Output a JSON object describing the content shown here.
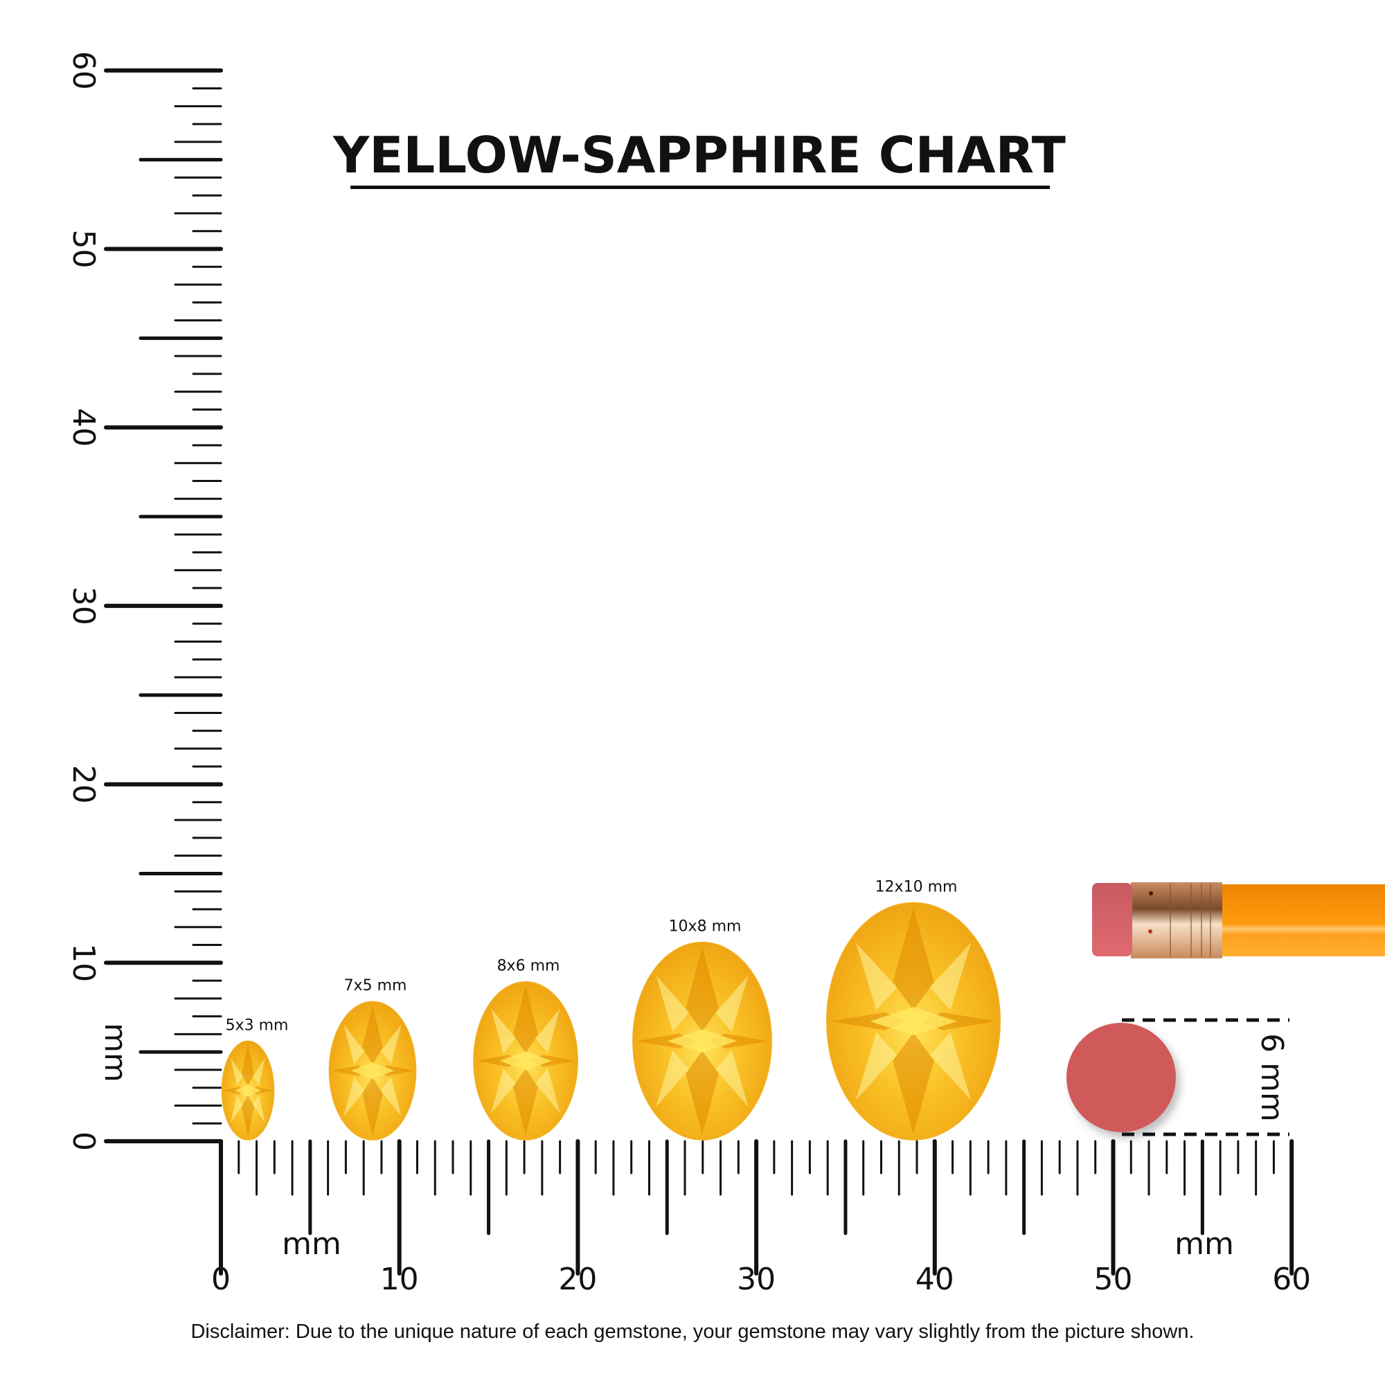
{
  "title": "YELLOW-SAPPHIRE CHART",
  "unit_label": "mm",
  "scale": {
    "min_mm": 0,
    "max_mm": 60,
    "major_step": 10,
    "minor_step": 1
  },
  "vertical_axis": {
    "labels": [
      "0",
      "10",
      "20",
      "30",
      "40",
      "50",
      "60"
    ],
    "unit": "mm"
  },
  "horizontal_axis": {
    "labels": [
      "0",
      "10",
      "20",
      "30",
      "40",
      "50",
      "60"
    ],
    "unit_left": "mm",
    "unit_right": "mm"
  },
  "gemstones": [
    {
      "label": "5x3 mm",
      "length_mm": 5,
      "width_mm": 3
    },
    {
      "label": "7x5 mm",
      "length_mm": 7,
      "width_mm": 5
    },
    {
      "label": "8x6 mm",
      "length_mm": 8,
      "width_mm": 6
    },
    {
      "label": "10x8 mm",
      "length_mm": 10,
      "width_mm": 8
    },
    {
      "label": "12x10 mm",
      "length_mm": 12,
      "width_mm": 10
    }
  ],
  "reference": {
    "eraser_label": "6 mm",
    "eraser_diameter_mm": 6
  },
  "colors": {
    "gem": "#f6b417",
    "gem_light": "#ffd84a",
    "gem_dark": "#e89a0c",
    "eraser": "#d05a5a",
    "pencil_body": "#ff9a10",
    "ferrule": "#d9a27a",
    "ink": "#111111"
  },
  "disclaimer": "Disclaimer: Due to the unique nature of each gemstone, your gemstone may vary slightly from the picture shown."
}
